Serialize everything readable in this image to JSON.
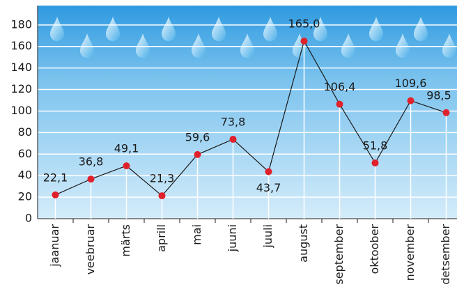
{
  "chart_data": {
    "type": "line",
    "categories": [
      "jaanuar",
      "veebruar",
      "märts",
      "aprill",
      "mai",
      "juuni",
      "juuli",
      "august",
      "september",
      "oktoober",
      "november",
      "detsember"
    ],
    "series": [
      {
        "color": "#e0202a",
        "values": [
          22.1,
          36.8,
          49.1,
          21.3,
          59.6,
          73.8,
          43.7,
          165.0,
          106.4,
          51.8,
          109.6,
          98.5
        ],
        "value_labels": [
          "22,1",
          "36,8",
          "49,1",
          "21,3",
          "59,6",
          "73,8",
          "43,7",
          "165,0",
          "106,4",
          "51,8",
          "109,6",
          "98,5"
        ]
      }
    ],
    "ylim": [
      0,
      198
    ],
    "yticks": [
      0,
      20,
      40,
      60,
      80,
      100,
      120,
      140,
      160,
      180
    ],
    "grid": true
  }
}
